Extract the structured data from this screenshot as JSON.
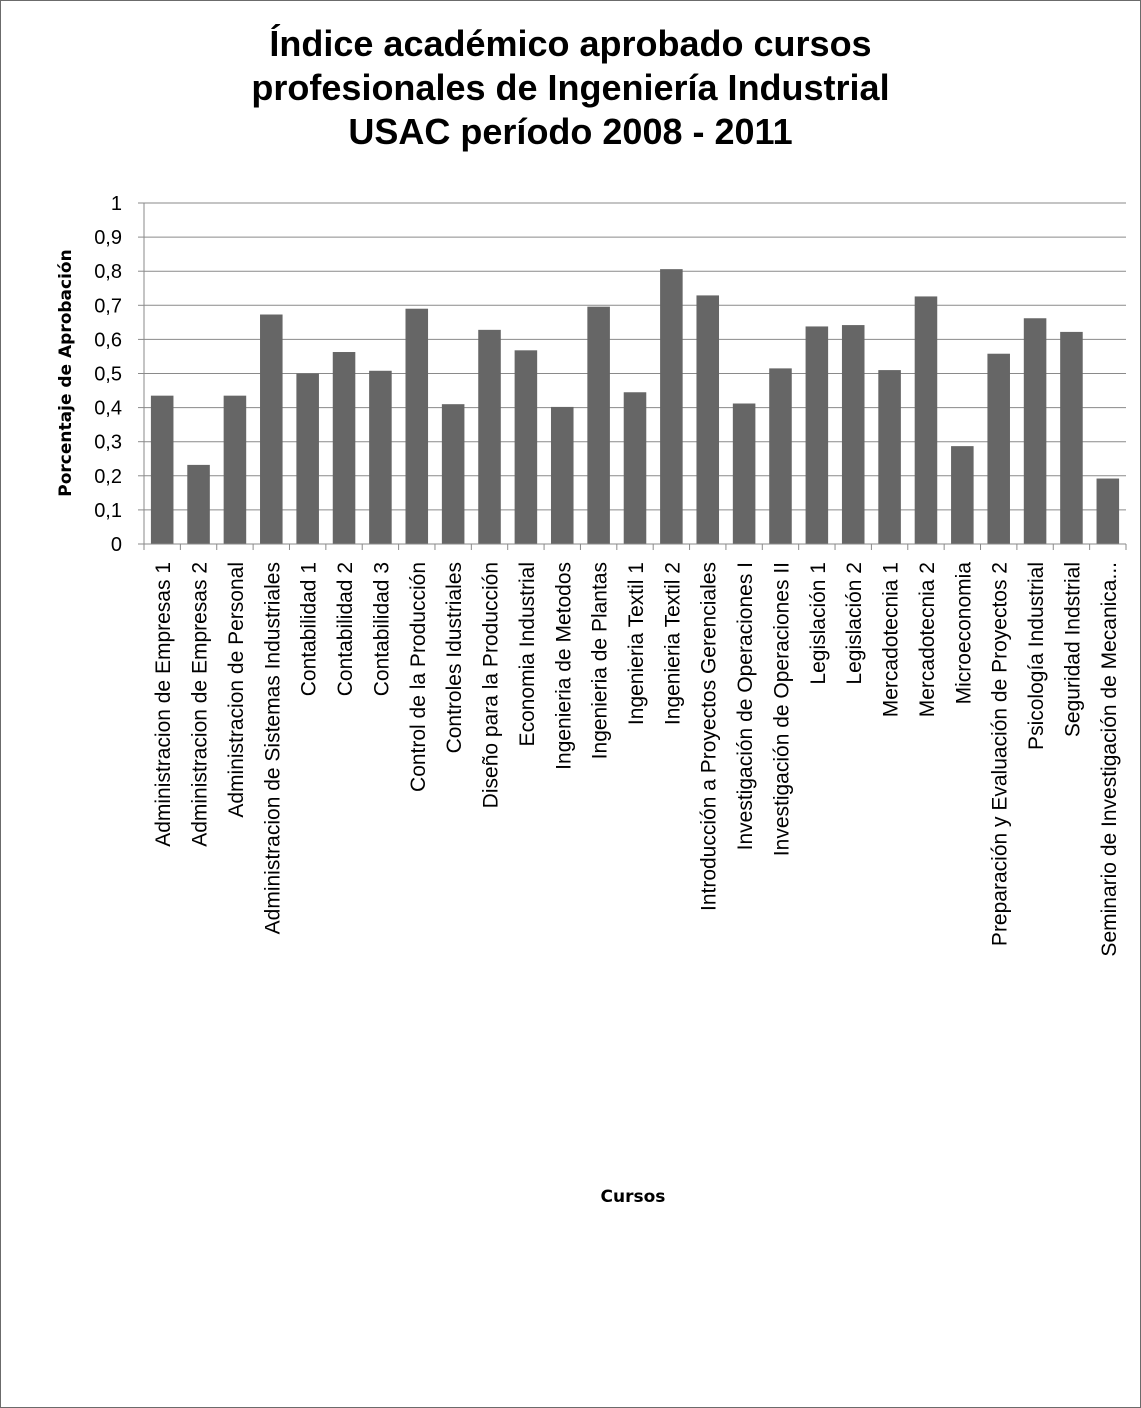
{
  "chart_data": {
    "type": "bar",
    "title_lines": [
      "Índice académico aprobado cursos",
      "profesionales de Ingeniería Industrial",
      "USAC período 2008 - 2011"
    ],
    "xlabel": "Cursos",
    "ylabel": "Porcentaje de Aprobación",
    "ylim": [
      0,
      1
    ],
    "yticks": [
      "0",
      "0,1",
      "0,2",
      "0,3",
      "0,4",
      "0,5",
      "0,6",
      "0,7",
      "0,8",
      "0,9",
      "1"
    ],
    "grid": true,
    "bar_color": "#666666",
    "categories": [
      "Administracion de Empresas 1",
      "Administracion de Empresas 2",
      "Administracion de Personal",
      "Administracion de Sistemas Industriales",
      "Contabilidad 1",
      "Contabilidad 2",
      "Contabilidad 3",
      "Control de la Producción",
      "Controles Idustriales",
      "Diseño para la Producción",
      "Economia Industrial",
      "Ingenieria de Metodos",
      "Ingenieria de Plantas",
      "Ingenieria Textil 1",
      "Ingenieria Textil 2",
      "Introducción a Proyectos Gerenciales",
      "Investigación de Operaciones I",
      "Investigación de Operaciones II",
      "Legislación 1",
      "Legislación 2",
      "Mercadotecnia 1",
      "Mercadotecnia 2",
      "Microeconomia",
      "Preparación y Evaluación de Proyectos 2",
      "Psicología Industrial",
      "Seguridad Indstrial",
      "Seminario de Investigación de Mecanica..."
    ],
    "values": [
      0.435,
      0.232,
      0.435,
      0.673,
      0.5,
      0.563,
      0.508,
      0.69,
      0.41,
      0.628,
      0.568,
      0.402,
      0.696,
      0.445,
      0.806,
      0.729,
      0.412,
      0.515,
      0.638,
      0.642,
      0.51,
      0.726,
      0.287,
      0.558,
      0.662,
      0.622,
      0.192
    ]
  }
}
